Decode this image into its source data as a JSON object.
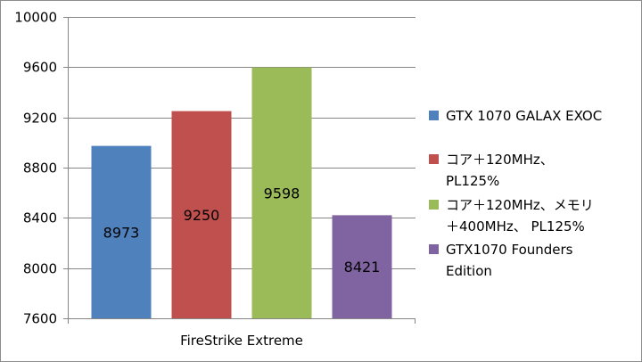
{
  "chart_data": {
    "type": "bar",
    "title": "",
    "xlabel": "",
    "ylabel": "",
    "categories": [
      "FireStrike Extreme"
    ],
    "ylim": [
      7600,
      10000
    ],
    "yticks": [
      7600,
      8000,
      8400,
      8800,
      9200,
      9600,
      10000
    ],
    "grid": true,
    "legend_position": "right",
    "series": [
      {
        "name": "GTX 1070 GALAX EXOC",
        "values": [
          8973
        ],
        "color": "#4f81bd"
      },
      {
        "name": "コア＋120MHz、PL125%",
        "values": [
          9250
        ],
        "color": "#c0504d"
      },
      {
        "name": "コア＋120MHz、メモリ＋400MHz、 PL125%",
        "values": [
          9598
        ],
        "color": "#9bbb59"
      },
      {
        "name": "GTX1070 Founders Edition",
        "values": [
          8421
        ],
        "color": "#8064a2"
      }
    ],
    "data_labels": [
      "8973",
      "9250",
      "9598",
      "8421"
    ]
  },
  "legend": {
    "items": [
      {
        "lines": [
          "GTX 1070 GALAX EXOC"
        ]
      },
      {
        "lines": [
          "コア＋120MHz、",
          "PL125%"
        ]
      },
      {
        "lines": [
          "コア＋120MHz、メモリ",
          "＋400MHz、 PL125%"
        ]
      },
      {
        "lines": [
          "GTX1070 Founders",
          "Edition"
        ]
      }
    ]
  }
}
